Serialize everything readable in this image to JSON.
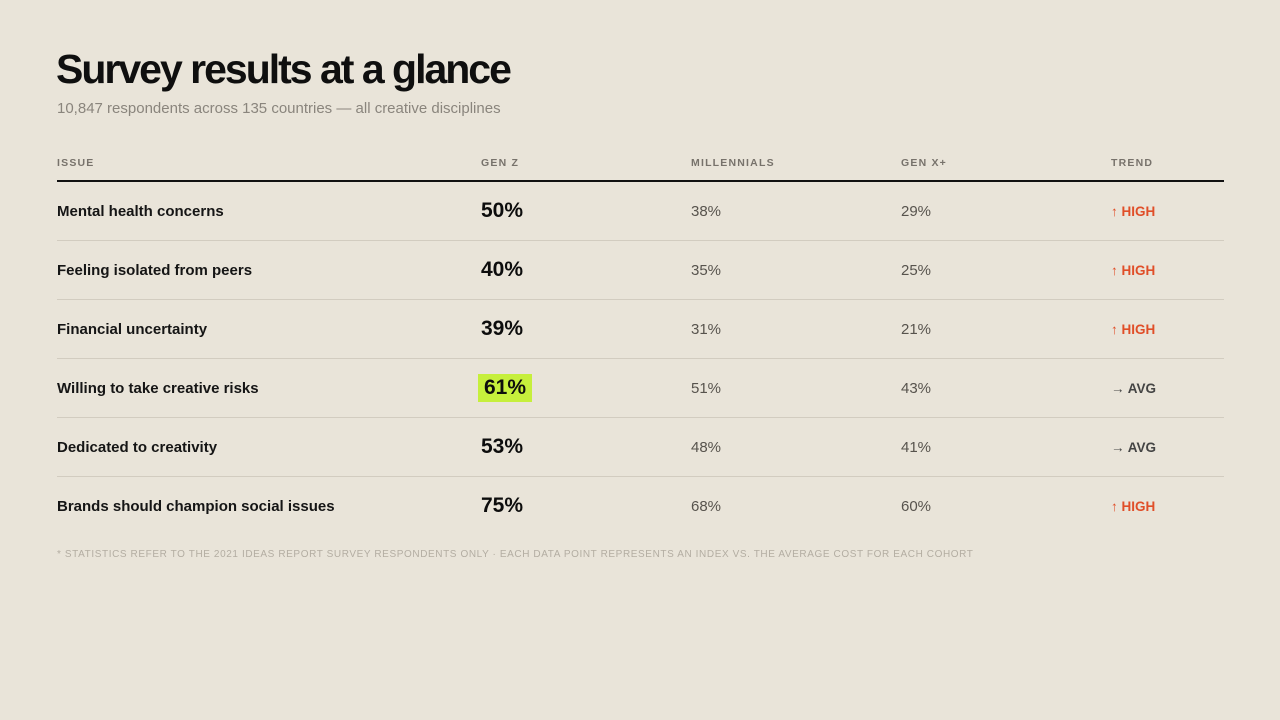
{
  "header": {
    "title": "Survey results at a glance",
    "subtitle": "10,847 respondents across 135 countries — all creative disciplines"
  },
  "table": {
    "columns": [
      "ISSUE",
      "GEN Z",
      "MILLENNIALS",
      "GEN X+",
      "TREND"
    ],
    "rows": [
      {
        "issue": "Mental health concerns",
        "gen_z": "50%",
        "millennials": "38%",
        "gen_x": "29%",
        "trend": "↑ HIGH",
        "trend_level": "high",
        "highlight": false
      },
      {
        "issue": "Feeling isolated from peers",
        "gen_z": "40%",
        "millennials": "35%",
        "gen_x": "25%",
        "trend": "↑ HIGH",
        "trend_level": "high",
        "highlight": false
      },
      {
        "issue": "Financial uncertainty",
        "gen_z": "39%",
        "millennials": "31%",
        "gen_x": "21%",
        "trend": "↑ HIGH",
        "trend_level": "high",
        "highlight": false
      },
      {
        "issue": "Willing to take creative risks",
        "gen_z": "61%",
        "millennials": "51%",
        "gen_x": "43%",
        "trend": "→ AVG",
        "trend_level": "avg",
        "highlight": true
      },
      {
        "issue": "Dedicated to creativity",
        "gen_z": "53%",
        "millennials": "48%",
        "gen_x": "41%",
        "trend": "→ AVG",
        "trend_level": "avg",
        "highlight": false
      },
      {
        "issue": "Brands should champion social issues",
        "gen_z": "75%",
        "millennials": "68%",
        "gen_x": "60%",
        "trend": "↑ HIGH",
        "trend_level": "high",
        "highlight": false
      }
    ]
  },
  "footnote": "* STATISTICS REFER TO THE 2021 IDEAS REPORT SURVEY RESPONDENTS ONLY · EACH DATA POINT REPRESENTS AN INDEX VS. THE AVERAGE COST FOR EACH COHORT",
  "colors": {
    "background": "#e9e4d9",
    "highlight": "#c6ef3c",
    "trend_high": "#e04e28",
    "trend_avg": "#444444"
  }
}
